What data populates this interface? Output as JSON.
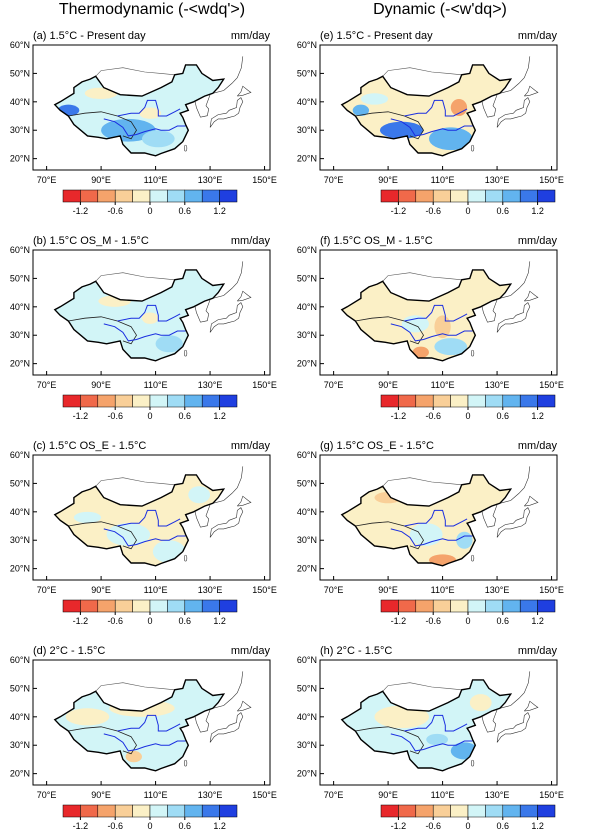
{
  "columns": [
    {
      "title": "Thermodynamic (-<wdq'>)",
      "panels": [
        {
          "label": "(a) 1.5°C - Present day",
          "units": "mm/day"
        },
        {
          "label": "(b) 1.5°C OS_M - 1.5°C",
          "units": "mm/day"
        },
        {
          "label": "(c) 1.5°C OS_E - 1.5°C",
          "units": "mm/day"
        },
        {
          "label": "(d) 2°C - 1.5°C",
          "units": "mm/day"
        }
      ]
    },
    {
      "title": "Dynamic (-<w'dq>)",
      "panels": [
        {
          "label": "(e) 1.5°C - Present day",
          "units": "mm/day"
        },
        {
          "label": "(f) 1.5°C OS_M - 1.5°C",
          "units": "mm/day"
        },
        {
          "label": "(g) 1.5°C OS_E - 1.5°C",
          "units": "mm/day"
        },
        {
          "label": "(h) 2°C - 1.5°C",
          "units": "mm/day"
        }
      ]
    }
  ],
  "latlim": [
    16,
    60
  ],
  "lonlim": [
    65,
    152
  ],
  "latticks": [
    {
      "value": 60,
      "label": "60°N"
    },
    {
      "value": 50,
      "label": "50°N"
    },
    {
      "value": 40,
      "label": "40°N"
    },
    {
      "value": 30,
      "label": "30°N"
    },
    {
      "value": 20,
      "label": "20°N"
    }
  ],
  "lonticks": [
    {
      "value": 70,
      "label": "70°E"
    },
    {
      "value": 90,
      "label": "90°E"
    },
    {
      "value": 110,
      "label": "110°E"
    },
    {
      "value": 130,
      "label": "130°E"
    },
    {
      "value": 150,
      "label": "150°E"
    }
  ],
  "colorbar": {
    "range": [
      -1.5,
      1.5
    ],
    "ticks": [
      -1.2,
      -0.6,
      0,
      0.6,
      1.2
    ],
    "colors": [
      "#e8282b",
      "#f0694a",
      "#f5a36b",
      "#f9cf98",
      "#fbf0c6",
      "#d2f5f7",
      "#9fdcf5",
      "#62b4ef",
      "#3a78ea",
      "#1f3fe0"
    ]
  }
}
